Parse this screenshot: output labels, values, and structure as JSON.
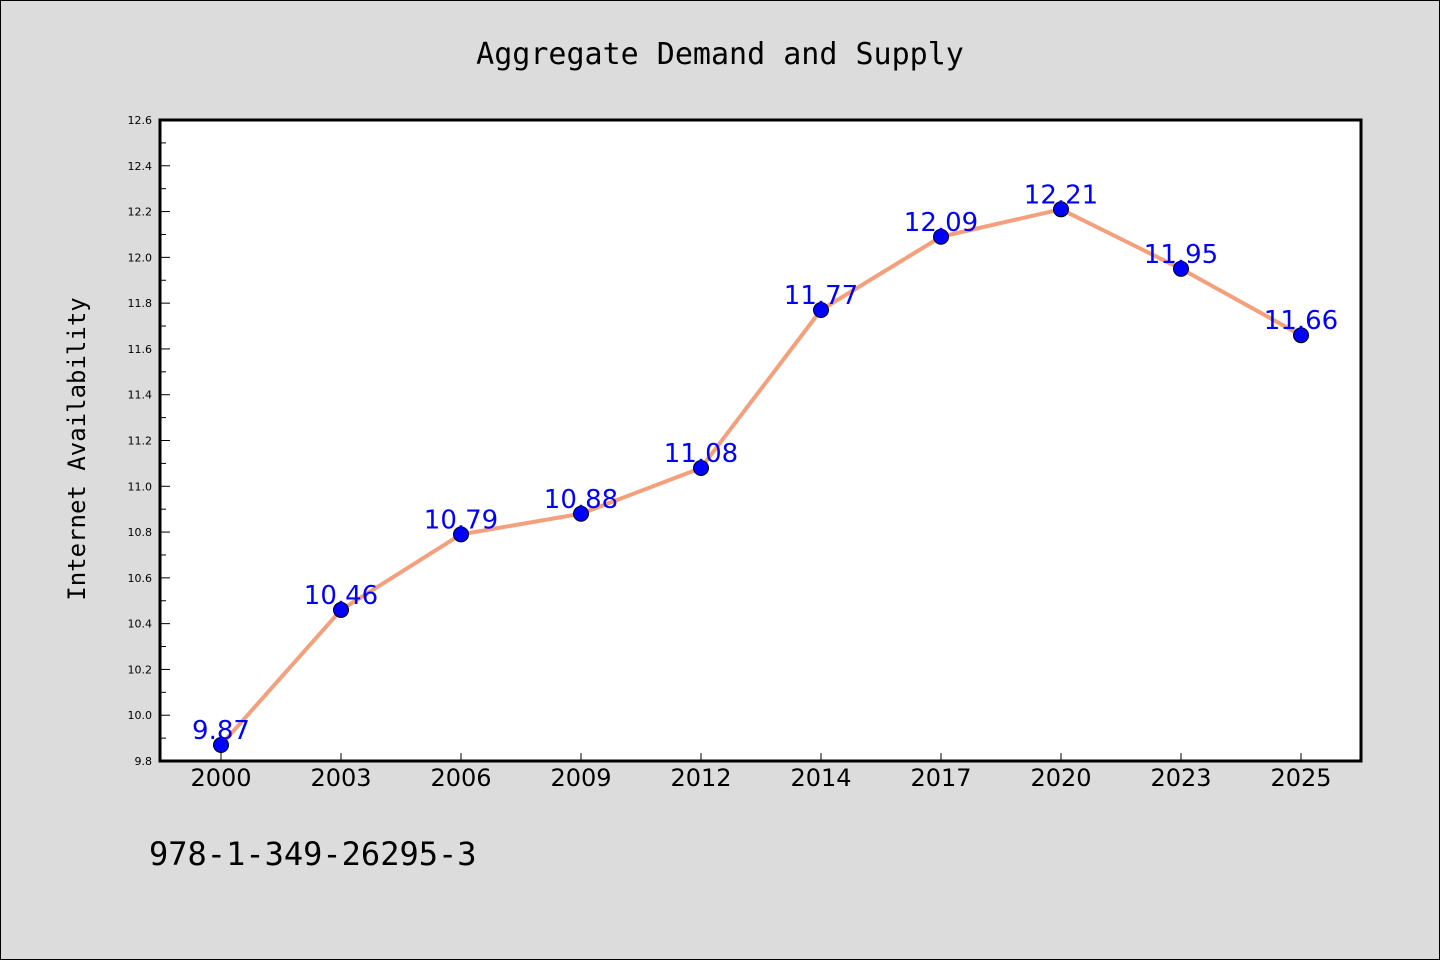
{
  "footer_text": "978-1-349-26295-3",
  "colors": {
    "background": "#dcdcdc",
    "plot_background": "#ffffff",
    "line": "#f4a07c",
    "marker": "#0000ff",
    "data_label": "#0000ff"
  },
  "chart_data": {
    "type": "line",
    "title": "Aggregate Demand and Supply",
    "xlabel": "",
    "ylabel": "Internet Availability",
    "categories": [
      "2000",
      "2003",
      "2006",
      "2009",
      "2012",
      "2014",
      "2017",
      "2020",
      "2023",
      "2025"
    ],
    "values": [
      9.87,
      10.46,
      10.79,
      10.88,
      11.08,
      11.77,
      12.09,
      12.21,
      11.95,
      11.66
    ],
    "data_labels": [
      "9.87",
      "10.46",
      "10.79",
      "10.88",
      "11.08",
      "11.77",
      "12.09",
      "12.21",
      "11.95",
      "11.66"
    ],
    "ylim": [
      9.8,
      12.6
    ],
    "yticks": [
      9.8,
      10.0,
      10.2,
      10.4,
      10.6,
      10.8,
      11.0,
      11.2,
      11.4,
      11.6,
      11.8,
      12.0,
      12.2,
      12.4,
      12.6
    ],
    "ytick_labels": [
      "9.8",
      "10.0",
      "10.2",
      "10.4",
      "10.6",
      "10.8",
      "11.0",
      "11.2",
      "11.4",
      "11.6",
      "11.8",
      "12.0",
      "12.2",
      "12.4",
      "12.6"
    ],
    "grid": false,
    "legend": "none"
  }
}
